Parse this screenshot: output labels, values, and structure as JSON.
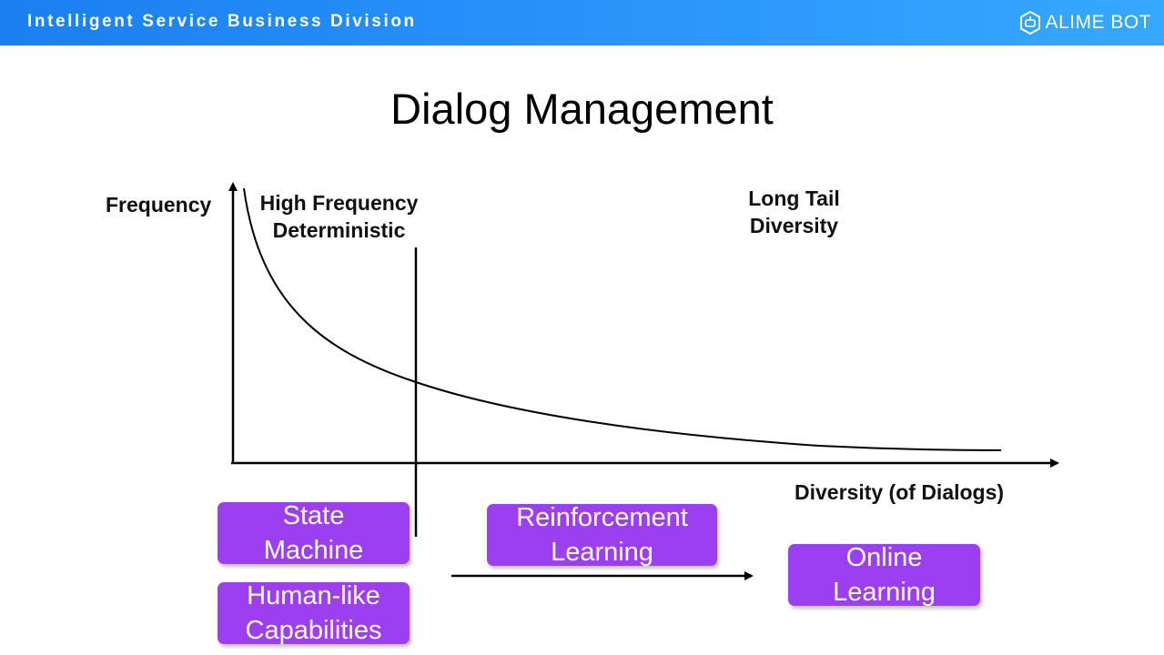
{
  "header": {
    "division": "Intelligent Service Business Division",
    "brand": "ALIME BOT"
  },
  "title": "Dialog Management",
  "diagram": {
    "y_axis_label": "Frequency",
    "x_axis_label": "Diversity (of Dialogs)",
    "head_region": [
      "High Frequency",
      "Deterministic"
    ],
    "tail_region": [
      "Long Tail",
      "Diversity"
    ]
  },
  "boxes": {
    "state_machine": [
      "State",
      "Machine"
    ],
    "human_like": [
      "Human-like",
      "Capabilities"
    ],
    "reinforcement": [
      "Reinforcement",
      "Learning"
    ],
    "online": [
      "Online",
      "Learning"
    ]
  },
  "colors": {
    "header_start": "#1a7ff0",
    "header_end": "#36a8ff",
    "box_fill": "#9b3ff0"
  }
}
